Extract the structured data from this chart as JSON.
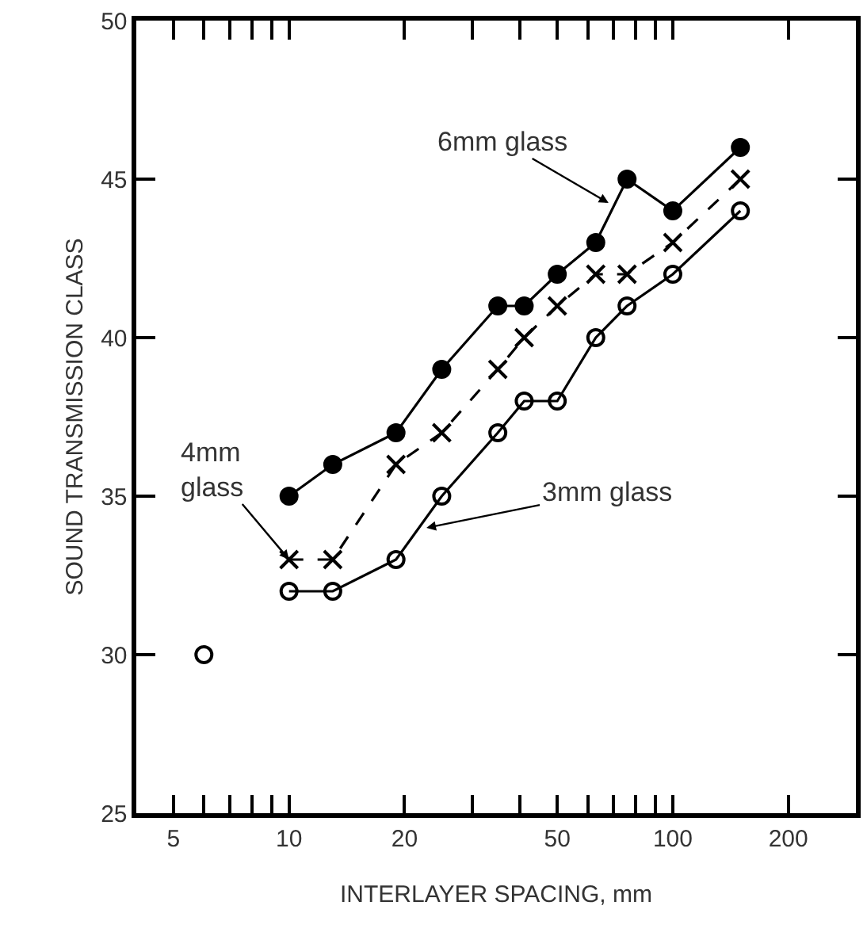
{
  "chart_data": {
    "type": "line",
    "xlabel": "INTERLAYER SPACING, mm",
    "ylabel": "SOUND TRANSMISSION CLASS",
    "log": "x",
    "xlim": [
      4,
      300
    ],
    "ylim": [
      25,
      50
    ],
    "xticks": [
      5,
      {
        "value": 6,
        "label": null
      },
      {
        "value": 7,
        "label": null
      },
      {
        "value": 8,
        "label": null
      },
      {
        "value": 9,
        "label": null
      },
      10,
      20,
      {
        "value": 30,
        "label": null
      },
      {
        "value": 40,
        "label": null
      },
      50,
      {
        "value": 60,
        "label": null
      },
      {
        "value": 70,
        "label": null
      },
      {
        "value": 80,
        "label": null
      },
      {
        "value": 90,
        "label": null
      },
      100,
      200
    ],
    "yticks": [
      25,
      30,
      35,
      40,
      45,
      50
    ],
    "series": [
      {
        "color": "#000000",
        "marker": "circle",
        "line_style": "solid",
        "x": [
          10,
          13,
          19,
          25,
          35,
          41,
          50,
          63,
          76,
          100,
          150
        ],
        "values": [
          35,
          36,
          37,
          39,
          41,
          41,
          42,
          43,
          45,
          44,
          46
        ]
      },
      {
        "color": "#000000",
        "marker": "cross",
        "line_style": "dashed",
        "x": [
          10,
          13,
          19,
          25,
          35,
          41,
          50,
          63,
          76,
          100,
          150
        ],
        "values": [
          33,
          33,
          36,
          37,
          39,
          40,
          41,
          42,
          42,
          43,
          45
        ]
      },
      {
        "color": "#000000",
        "marker": "circle-open",
        "line_style": "solid",
        "x": [
          10,
          13,
          19,
          25,
          35,
          41,
          50,
          63,
          76,
          100,
          150
        ],
        "values": [
          32,
          32,
          33,
          35,
          37,
          38,
          38,
          40,
          41,
          42,
          44
        ]
      },
      {
        "type": "scatter",
        "color": "#000000",
        "marker": "circle-open",
        "x": [
          6
        ],
        "values": [
          30
        ]
      }
    ],
    "annotations": [
      {
        "text": "6mm glass",
        "x": 68,
        "y": 44.25
      },
      {
        "text": "4mm\nglass",
        "x": 10,
        "y": 33
      },
      {
        "text": "3mm glass",
        "x": 22.8,
        "y": 34
      }
    ]
  }
}
